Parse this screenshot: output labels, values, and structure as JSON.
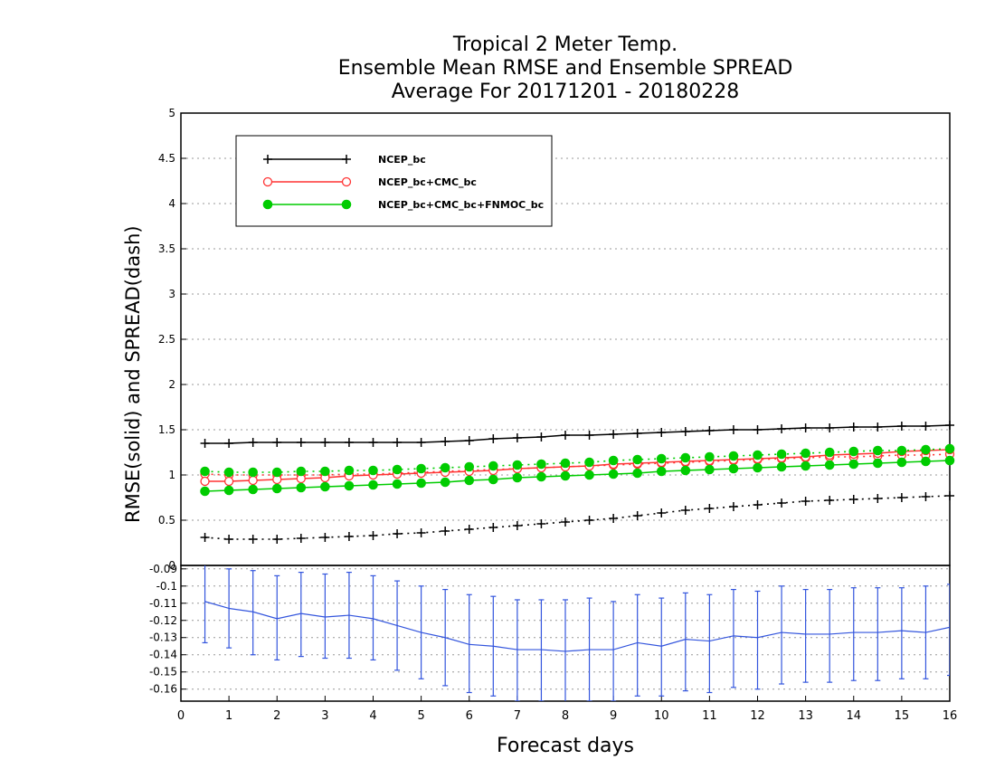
{
  "chart_data": {
    "type": "line",
    "title": [
      "Tropical 2 Meter Temp.",
      "Ensemble Mean RMSE and Ensemble SPREAD",
      "Average For 20171201 - 20180228"
    ],
    "xlabel": "Forecast days",
    "ylabel": "RMSE(solid) and SPREAD(dash)",
    "xlim": [
      0,
      16
    ],
    "ylim": [
      0,
      5
    ],
    "xticks": [
      "0",
      "1",
      "2",
      "3",
      "4",
      "5",
      "6",
      "7",
      "8",
      "9",
      "10",
      "11",
      "12",
      "13",
      "14",
      "15",
      "16"
    ],
    "yticks": [
      "0",
      "0.5",
      "1",
      "1.5",
      "2",
      "2.5",
      "3",
      "3.5",
      "4",
      "4.5",
      "5"
    ],
    "grid": true,
    "legend_position": "top-left",
    "x": [
      0.5,
      1,
      1.5,
      2,
      2.5,
      3,
      3.5,
      4,
      4.5,
      5,
      5.5,
      6,
      6.5,
      7,
      7.5,
      8,
      8.5,
      9,
      9.5,
      10,
      10.5,
      11,
      11.5,
      12,
      12.5,
      13,
      13.5,
      14,
      14.5,
      15,
      15.5,
      16
    ],
    "series": [
      {
        "name": "NCEP_bc",
        "color": "#000000",
        "marker": "plus",
        "rmse": [
          1.35,
          1.35,
          1.36,
          1.36,
          1.36,
          1.36,
          1.36,
          1.36,
          1.36,
          1.36,
          1.37,
          1.38,
          1.4,
          1.41,
          1.42,
          1.44,
          1.44,
          1.45,
          1.46,
          1.47,
          1.48,
          1.49,
          1.5,
          1.5,
          1.51,
          1.52,
          1.52,
          1.53,
          1.53,
          1.54,
          1.54,
          1.55
        ],
        "spread": [
          0.31,
          0.29,
          0.29,
          0.29,
          0.3,
          0.31,
          0.32,
          0.33,
          0.35,
          0.36,
          0.38,
          0.4,
          0.42,
          0.44,
          0.46,
          0.48,
          0.5,
          0.52,
          0.55,
          0.58,
          0.61,
          0.63,
          0.65,
          0.67,
          0.69,
          0.71,
          0.72,
          0.73,
          0.74,
          0.75,
          0.76,
          0.77
        ]
      },
      {
        "name": "NCEP_bc+CMC_bc",
        "color": "#ff3333",
        "marker": "open-circle",
        "rmse": [
          0.93,
          0.93,
          0.94,
          0.95,
          0.96,
          0.97,
          0.99,
          1.0,
          1.01,
          1.02,
          1.03,
          1.04,
          1.05,
          1.07,
          1.08,
          1.09,
          1.1,
          1.12,
          1.13,
          1.14,
          1.15,
          1.16,
          1.17,
          1.18,
          1.19,
          1.2,
          1.22,
          1.23,
          1.24,
          1.26,
          1.27,
          1.28
        ],
        "spread": [
          1.01,
          1.0,
          1.0,
          1.0,
          1.0,
          1.0,
          1.01,
          1.01,
          1.02,
          1.03,
          1.04,
          1.05,
          1.06,
          1.07,
          1.08,
          1.09,
          1.1,
          1.11,
          1.12,
          1.13,
          1.14,
          1.15,
          1.16,
          1.17,
          1.18,
          1.19,
          1.2,
          1.2,
          1.21,
          1.22,
          1.22,
          1.23
        ]
      },
      {
        "name": "NCEP_bc+CMC_bc+FNMOC_bc",
        "color": "#00cc00",
        "marker": "filled-circle",
        "rmse": [
          0.82,
          0.83,
          0.84,
          0.85,
          0.86,
          0.87,
          0.88,
          0.89,
          0.9,
          0.91,
          0.92,
          0.94,
          0.95,
          0.97,
          0.98,
          0.99,
          1.0,
          1.01,
          1.02,
          1.04,
          1.05,
          1.06,
          1.07,
          1.08,
          1.09,
          1.1,
          1.11,
          1.12,
          1.13,
          1.14,
          1.15,
          1.16
        ],
        "spread": [
          1.04,
          1.03,
          1.03,
          1.03,
          1.04,
          1.04,
          1.05,
          1.05,
          1.06,
          1.07,
          1.08,
          1.09,
          1.1,
          1.11,
          1.12,
          1.13,
          1.14,
          1.16,
          1.17,
          1.18,
          1.19,
          1.2,
          1.21,
          1.22,
          1.23,
          1.24,
          1.25,
          1.26,
          1.27,
          1.27,
          1.28,
          1.29
        ]
      }
    ],
    "difference_panel": {
      "type": "line-with-errorbars",
      "ylim": [
        -0.167,
        -0.088
      ],
      "yticks": [
        "-0.09",
        "-0.1",
        "-0.11",
        "-0.12",
        "-0.13",
        "-0.14",
        "-0.15",
        "-0.16"
      ],
      "color": "#3355dd",
      "x": [
        0.5,
        1,
        1.5,
        2,
        2.5,
        3,
        3.5,
        4,
        4.5,
        5,
        5.5,
        6,
        6.5,
        7,
        7.5,
        8,
        8.5,
        9,
        9.5,
        10,
        10.5,
        11,
        11.5,
        12,
        12.5,
        13,
        13.5,
        14,
        14.5,
        15,
        15.5,
        16
      ],
      "values": [
        -0.109,
        -0.113,
        -0.115,
        -0.119,
        -0.116,
        -0.118,
        -0.117,
        -0.119,
        -0.123,
        -0.127,
        -0.13,
        -0.134,
        -0.135,
        -0.137,
        -0.137,
        -0.138,
        -0.137,
        -0.137,
        -0.133,
        -0.135,
        -0.131,
        -0.132,
        -0.129,
        -0.13,
        -0.127,
        -0.128,
        -0.128,
        -0.127,
        -0.127,
        -0.126,
        -0.127,
        -0.124
      ],
      "upper": [
        -0.085,
        -0.09,
        -0.091,
        -0.094,
        -0.092,
        -0.093,
        -0.092,
        -0.094,
        -0.097,
        -0.1,
        -0.102,
        -0.105,
        -0.106,
        -0.108,
        -0.108,
        -0.108,
        -0.107,
        -0.109,
        -0.105,
        -0.107,
        -0.104,
        -0.105,
        -0.102,
        -0.103,
        -0.1,
        -0.102,
        -0.102,
        -0.101,
        -0.101,
        -0.101,
        -0.1,
        -0.099
      ],
      "lower": [
        -0.133,
        -0.136,
        -0.14,
        -0.143,
        -0.141,
        -0.142,
        -0.142,
        -0.143,
        -0.149,
        -0.154,
        -0.158,
        -0.162,
        -0.164,
        -0.167,
        -0.167,
        -0.168,
        -0.167,
        -0.167,
        -0.164,
        -0.164,
        -0.161,
        -0.162,
        -0.159,
        -0.16,
        -0.157,
        -0.156,
        -0.156,
        -0.155,
        -0.155,
        -0.154,
        -0.154,
        -0.152
      ]
    }
  }
}
